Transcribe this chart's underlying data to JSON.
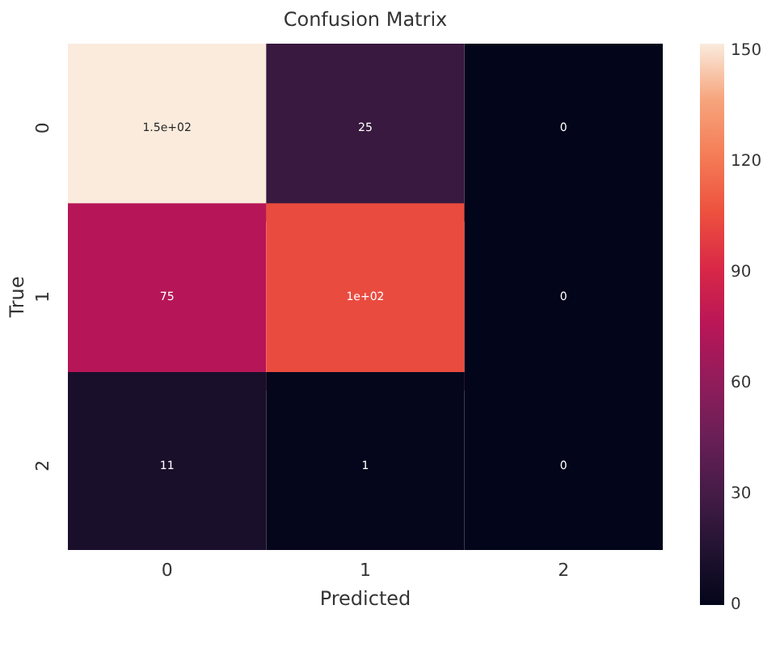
{
  "chart_data": {
    "type": "heatmap",
    "title": "Confusion Matrix",
    "xlabel": "Predicted",
    "ylabel": "True",
    "categories": [
      "0",
      "1",
      "2"
    ],
    "y_categories": [
      "0",
      "1",
      "2"
    ],
    "cells": [
      [
        152,
        25,
        0
      ],
      [
        75,
        104,
        0
      ],
      [
        11,
        1,
        0
      ]
    ],
    "cell_labels": [
      [
        "1.5e+02",
        "25",
        "0"
      ],
      [
        "75",
        "1e+02",
        "0"
      ],
      [
        "11",
        "1",
        "0"
      ]
    ],
    "clim": [
      0,
      152
    ],
    "cticks": [
      0,
      30,
      60,
      90,
      120,
      150
    ]
  }
}
